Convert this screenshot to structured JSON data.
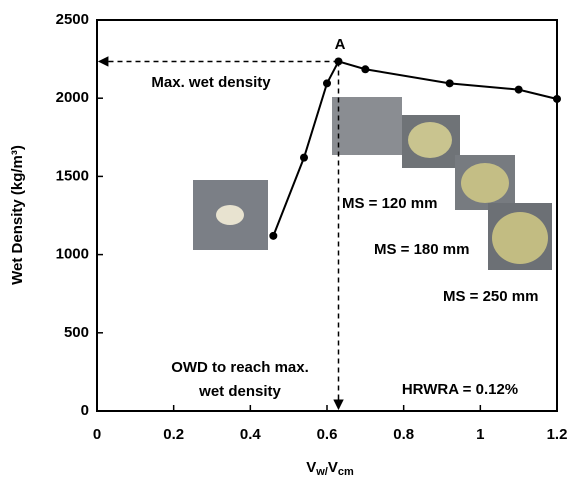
{
  "chart_data": {
    "type": "line",
    "x_label": [
      "V",
      "w/",
      "V",
      "cm"
    ],
    "y_label": "Wet Density (kg/m³)",
    "x": [
      0.46,
      0.54,
      0.6,
      0.63,
      0.7,
      0.92,
      1.1,
      1.2
    ],
    "series": [
      {
        "color": "#000000",
        "values": [
          1120,
          1620,
          2095,
          2235,
          2185,
          2095,
          2055,
          1995
        ]
      }
    ],
    "xlim": [
      0,
      1.2
    ],
    "xticks": [
      0,
      0.2,
      0.4,
      0.6,
      0.8,
      1,
      1.2
    ],
    "ylim": [
      0,
      2500
    ],
    "yticks": [
      0,
      500,
      1000,
      1500,
      2000,
      2500
    ],
    "peak_label": "A",
    "max_label": "Max. wet density",
    "owd_label": [
      "OWD to reach max.",
      "wet density"
    ],
    "hrwra_label": "HRWRA = 0.12%",
    "ms_labels": [
      "MS = 120 mm",
      "MS = 180 mm",
      "MS = 250 mm"
    ]
  }
}
